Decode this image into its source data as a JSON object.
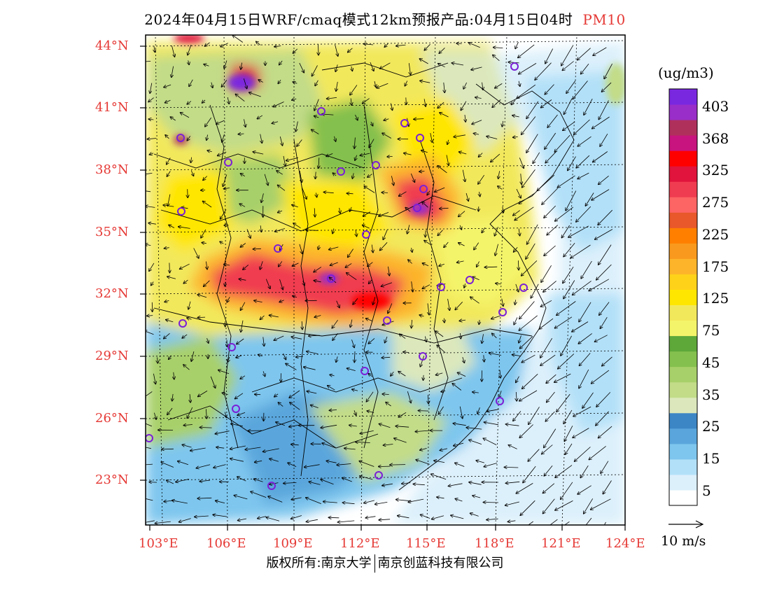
{
  "title": {
    "main": "2024年04月15日WRF/cmaq模式12km预报产品:04月15日04时",
    "pollutant": "PM10"
  },
  "map": {
    "lat_labels": [
      "44°N",
      "41°N",
      "38°N",
      "35°N",
      "32°N",
      "29°N",
      "26°N",
      "23°N"
    ],
    "lon_labels": [
      "103°E",
      "106°E",
      "109°E",
      "112°E",
      "115°E",
      "118°E",
      "121°E",
      "124°E"
    ],
    "colors": {
      "frame": "#000000",
      "label": "#e53935",
      "station": "#7b1fd6"
    }
  },
  "colorbar": {
    "unit": "(ug/m3)",
    "labels": [
      "403",
      "368",
      "325",
      "275",
      "225",
      "175",
      "125",
      "75",
      "45",
      "35",
      "25",
      "15",
      "5"
    ],
    "colors": [
      "#ffffff",
      "#dcf0fb",
      "#b2e0f8",
      "#7ec6ee",
      "#5aa6dc",
      "#3d86c6",
      "#dce8bc",
      "#c2dc88",
      "#a8d06a",
      "#84c04e",
      "#5ea83a",
      "#f4f46a",
      "#f2e85c",
      "#ffe600",
      "#ffd21a",
      "#fdb42a",
      "#f99a1e",
      "#ff8000",
      "#e8582a",
      "#fd6464",
      "#f03c50",
      "#e0143c",
      "#ff0000",
      "#c8147e",
      "#b0305c",
      "#9a2ec8",
      "#7a28e0"
    ]
  },
  "wind": {
    "reference_label": "10 m/s"
  },
  "copyright": {
    "left": "版权所有:南京大学",
    "right": "南京创蓝科技有限公司"
  }
}
